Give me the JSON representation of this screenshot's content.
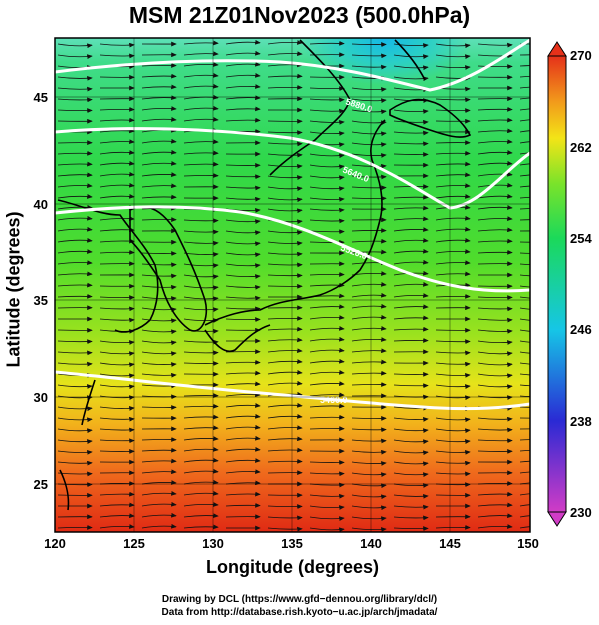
{
  "title": "MSM 21Z01Nov2023 (500.0hPa)",
  "xaxis": {
    "label": "Longitude (degrees)",
    "range": [
      120,
      150
    ],
    "ticks": [
      "120",
      "125",
      "130",
      "135",
      "140",
      "145",
      "150"
    ]
  },
  "yaxis": {
    "label": "Latitude  (degrees)",
    "range": [
      22.4,
      47.6
    ],
    "ticks": [
      "25",
      "30",
      "35",
      "40",
      "45"
    ]
  },
  "colorbar": {
    "range": [
      230,
      270
    ],
    "labels": [
      "270",
      "262",
      "254",
      "246",
      "238",
      "230"
    ],
    "colors": [
      "#d13cc6",
      "#2a2ad4",
      "#16c6e6",
      "#1bd95a",
      "#7ae32a",
      "#f3e417",
      "#f29a1b",
      "#e5311a"
    ]
  },
  "contours": [
    {
      "label": "5880.0",
      "lat": 31.0
    },
    {
      "label": "5640.0",
      "lat": 39.5
    },
    {
      "label": "5520.0",
      "lat": 43.0
    },
    {
      "label": "5460.0",
      "lat": 46.0
    }
  ],
  "credits": {
    "line1": "Drawing by DCL (https://www.gfd−dennou.org/library/dcl/)",
    "line2": "Data from http://database.rish.kyoto−u.ac.jp/arch/jmadata/"
  }
}
